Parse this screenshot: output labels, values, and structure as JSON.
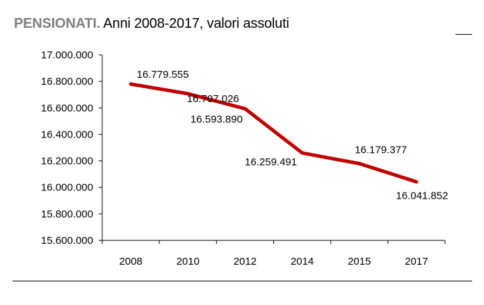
{
  "title": {
    "bold": "PENSIONATI.",
    "rest": "Anni 2008-2017, valori assoluti"
  },
  "colors": {
    "series": "#c00000",
    "title_bold": "#7f7f7f",
    "axis": "#000000"
  },
  "chart_data": {
    "type": "line",
    "categories": [
      "2008",
      "2010",
      "2012",
      "2014",
      "2015",
      "2017"
    ],
    "series": [
      {
        "values": [
          16779555,
          16707026,
          16593890,
          16259491,
          16179377,
          16041852
        ],
        "labels": [
          "16.779.555",
          "16.707.026",
          "16.593.890",
          "16.259.491",
          "16.179.377",
          "16.041.852"
        ]
      }
    ],
    "yticks": [
      15600000,
      15800000,
      16000000,
      16200000,
      16400000,
      16600000,
      16800000,
      17000000
    ],
    "ytick_labels": [
      "15.600.000",
      "15.800.000",
      "16.000.000",
      "16.200.000",
      "16.400.000",
      "16.600.000",
      "16.800.000",
      "17.000.000"
    ],
    "ylim": [
      15600000,
      17000000
    ],
    "grid": false,
    "legend": false
  }
}
